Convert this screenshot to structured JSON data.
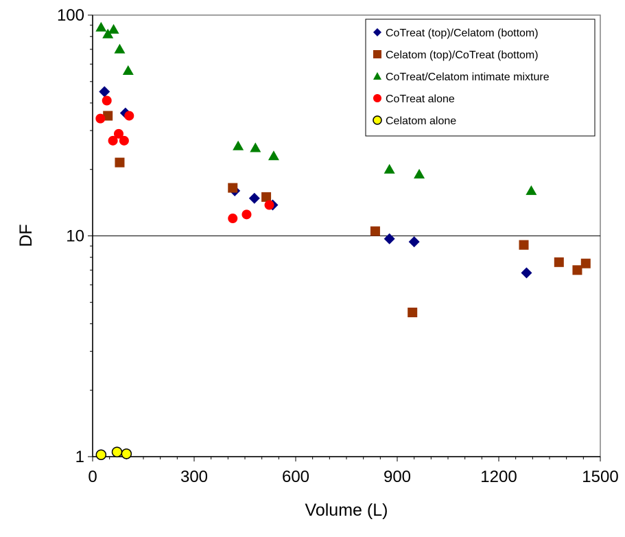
{
  "chart_data": {
    "type": "scatter",
    "title": "",
    "xlabel": "Volume (L)",
    "ylabel": "DF",
    "xlim": [
      0,
      1500
    ],
    "ylim": [
      1,
      100
    ],
    "yscale": "log",
    "x_ticks": [
      "0",
      "300",
      "600",
      "900",
      "1200",
      "1500"
    ],
    "y_ticks": [
      "1",
      "10",
      "100"
    ],
    "grid": "horizontal major lines",
    "legend_position": "top-right",
    "series": [
      {
        "name": "CoTreat (top)/Celatom (bottom)",
        "marker": "diamond",
        "color": "#000080",
        "points": [
          [
            35,
            45
          ],
          [
            97,
            36
          ],
          [
            420,
            16
          ],
          [
            478,
            14.8
          ],
          [
            532,
            13.8
          ],
          [
            877,
            9.7
          ],
          [
            950,
            9.4
          ],
          [
            1282,
            6.8
          ]
        ]
      },
      {
        "name": "Celatom (top)/CoTreat (bottom)",
        "marker": "square",
        "color": "#993300",
        "points": [
          [
            45,
            35
          ],
          [
            80,
            21.5
          ],
          [
            414,
            16.5
          ],
          [
            513,
            15
          ],
          [
            835,
            10.5
          ],
          [
            945,
            4.5
          ],
          [
            1274,
            9.1
          ],
          [
            1378,
            7.6
          ],
          [
            1432,
            7
          ],
          [
            1457,
            7.5
          ]
        ]
      },
      {
        "name": "CoTreat/Celatom intimate mixture",
        "marker": "triangle",
        "color": "#008000",
        "points": [
          [
            25,
            88
          ],
          [
            45,
            82
          ],
          [
            62,
            86
          ],
          [
            80,
            70
          ],
          [
            105,
            56
          ],
          [
            430,
            25.5
          ],
          [
            481,
            25
          ],
          [
            535,
            23
          ],
          [
            877,
            20
          ],
          [
            965,
            19
          ],
          [
            1296,
            16
          ]
        ]
      },
      {
        "name": "CoTreat alone",
        "marker": "circle",
        "color": "#ff0000",
        "points": [
          [
            23,
            34
          ],
          [
            42,
            41
          ],
          [
            60,
            27
          ],
          [
            77,
            29
          ],
          [
            93,
            27
          ],
          [
            108,
            35
          ],
          [
            414,
            12
          ],
          [
            455,
            12.5
          ],
          [
            522,
            13.8
          ]
        ]
      },
      {
        "name": "Celatom alone",
        "marker": "circle",
        "color": "#ffff00",
        "points": [
          [
            25,
            1.02
          ],
          [
            72,
            1.05
          ],
          [
            100,
            1.03
          ]
        ]
      }
    ]
  }
}
